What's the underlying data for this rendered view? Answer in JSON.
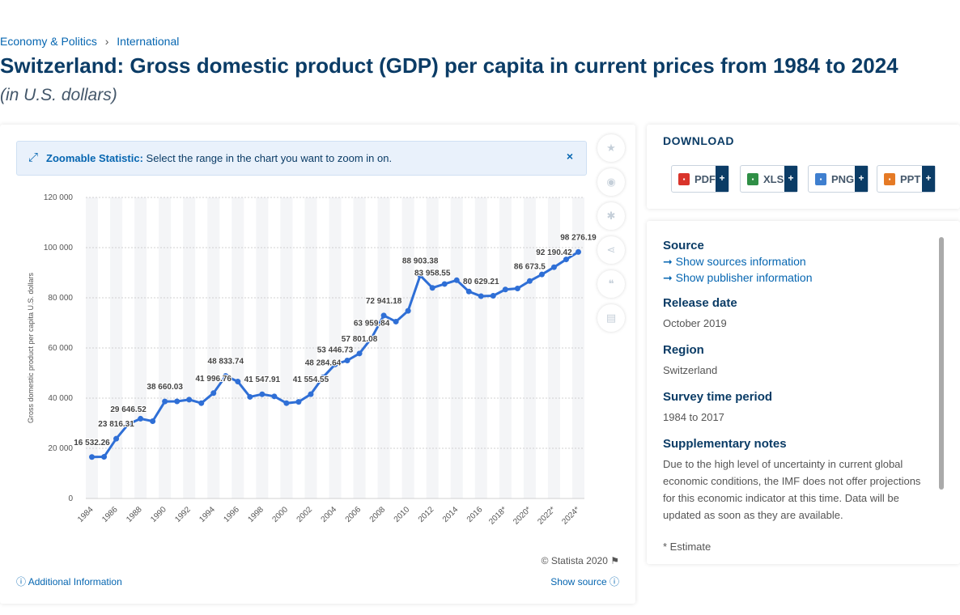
{
  "breadcrumb": {
    "item1": "Economy & Politics",
    "sep": "›",
    "item2": "International"
  },
  "title": "Switzerland: Gross domestic product (GDP) per capita in current prices from 1984 to 2024",
  "subtitle": "(in U.S. dollars)",
  "zoom": {
    "label": "Zoomable Statistic:",
    "text": "Select the range in the chart you want to zoom in on.",
    "close": "×"
  },
  "tools": [
    "star-icon",
    "bell-icon",
    "gear-icon",
    "share-icon",
    "quote-icon",
    "print-icon"
  ],
  "footer": {
    "copyright": "© Statista 2020",
    "additional": "Additional Information",
    "show_source": "Show source"
  },
  "download": {
    "title": "DOWNLOAD",
    "buttons": [
      {
        "label": "PDF",
        "color": "#d9342b"
      },
      {
        "label": "XLS",
        "color": "#2f8f46"
      },
      {
        "label": "PNG",
        "color": "#3f7fcf"
      },
      {
        "label": "PPT",
        "color": "#e57a25"
      }
    ],
    "plus": "+"
  },
  "info": {
    "source_h": "Source",
    "show_sources": "Show sources information",
    "show_publisher": "Show publisher information",
    "release_h": "Release date",
    "release_v": "October 2019",
    "region_h": "Region",
    "region_v": "Switzerland",
    "period_h": "Survey time period",
    "period_v": "1984 to 2017",
    "notes_h": "Supplementary notes",
    "notes_v": "Due to the high level of uncertainty in current global economic conditions, the IMF does not offer projections for this economic indicator at this time. Data will be updated as soon as they are available.",
    "estimate": "* Estimate"
  },
  "chart_data": {
    "type": "line",
    "ylabel": "Gross domestic product per capita U.S. dollars",
    "ylim": [
      0,
      120000
    ],
    "yticks": [
      0,
      20000,
      40000,
      60000,
      80000,
      100000,
      120000
    ],
    "ytick_labels": [
      "0",
      "20 000",
      "40 000",
      "60 000",
      "80 000",
      "100 000",
      "120 000"
    ],
    "x": [
      1984,
      1985,
      1986,
      1987,
      1988,
      1989,
      1990,
      1991,
      1992,
      1993,
      1994,
      1995,
      1996,
      1997,
      1998,
      1999,
      2000,
      2001,
      2002,
      2003,
      2004,
      2005,
      2006,
      2007,
      2008,
      2009,
      2010,
      2011,
      2012,
      2013,
      2014,
      2015,
      2016,
      2017,
      2018,
      2019,
      2020,
      2021,
      2022,
      2023,
      2024
    ],
    "xtick_labels": [
      "1984",
      "1986",
      "1988",
      "1990",
      "1992",
      "1994",
      "1996",
      "1998",
      "2000",
      "2002",
      "2004",
      "2006",
      "2008",
      "2010",
      "2012",
      "2014",
      "2016",
      "2018*",
      "2020*",
      "2022*",
      "2024*"
    ],
    "values": [
      16532.26,
      16600,
      23816.31,
      29646.52,
      31800,
      30800,
      38660.03,
      38700,
      39400,
      38000,
      41996.76,
      48833.74,
      46600,
      40500,
      41547.91,
      40700,
      38000,
      38500,
      41554.55,
      48284.64,
      53446.73,
      55000,
      57801.08,
      63959.84,
      72941.18,
      70500,
      74800,
      88903.38,
      83958.55,
      85500,
      87000,
      82500,
      80629.21,
      80800,
      83300,
      83700,
      86673.5,
      89300,
      92190.42,
      95300,
      98276.19
    ],
    "labels": [
      {
        "x": 1984,
        "text": "16 532.26"
      },
      {
        "x": 1986,
        "text": "23 816.31"
      },
      {
        "x": 1987,
        "text": "29 646.52"
      },
      {
        "x": 1990,
        "text": "38 660.03"
      },
      {
        "x": 1994,
        "text": "41 996.76"
      },
      {
        "x": 1995,
        "text": "48 833.74"
      },
      {
        "x": 1998,
        "text": "41 547.91"
      },
      {
        "x": 2002,
        "text": "41 554.55"
      },
      {
        "x": 2003,
        "text": "48 284.64"
      },
      {
        "x": 2004,
        "text": "53 446.73"
      },
      {
        "x": 2006,
        "text": "57 801.08"
      },
      {
        "x": 2007,
        "text": "63 959.84"
      },
      {
        "x": 2008,
        "text": "72 941.18"
      },
      {
        "x": 2011,
        "text": "88 903.38"
      },
      {
        "x": 2012,
        "text": "83 958.55"
      },
      {
        "x": 2016,
        "text": "80 629.21"
      },
      {
        "x": 2020,
        "text": "86 673.5"
      },
      {
        "x": 2022,
        "text": "92 190.42"
      },
      {
        "x": 2024,
        "text": "98 276.19"
      }
    ],
    "line_color": "#2f6fd6",
    "grid": true
  }
}
